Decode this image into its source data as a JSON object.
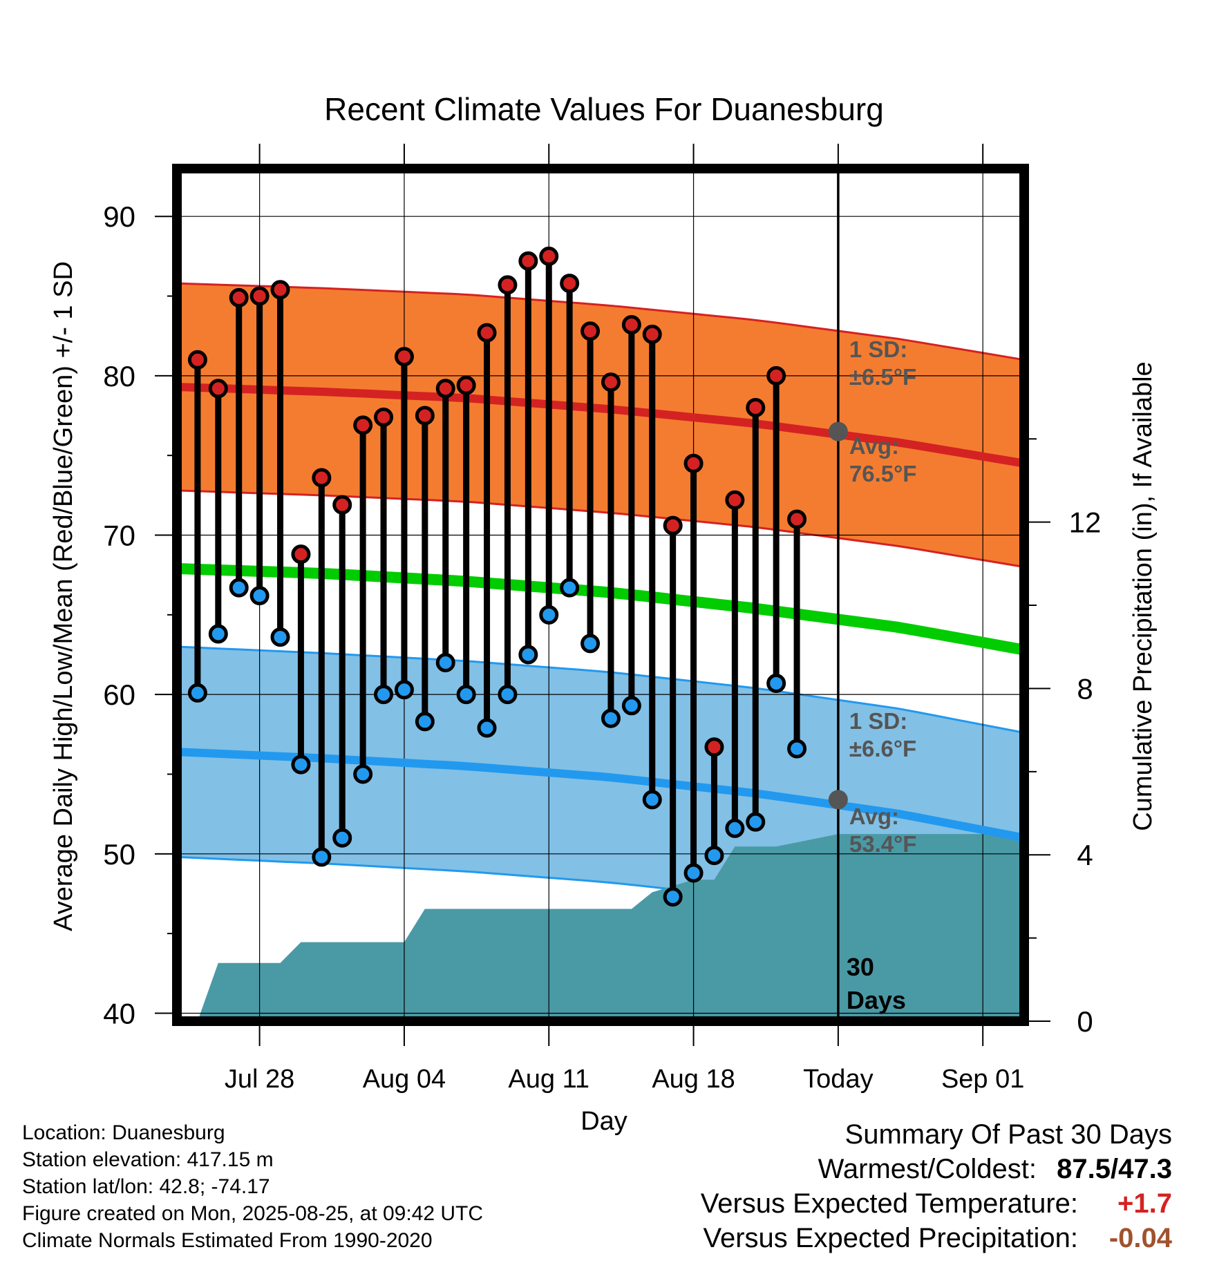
{
  "chart_data": {
    "type": "line",
    "title": "Recent Climate Values For Duanesburg",
    "xlabel": "Day",
    "ylabel": "Average Daily High/Low/Mean (Red/Blue/Green) +/- 1 SD",
    "y2label": "Cumulative Precipitation (in), If Available",
    "ylim": [
      39.5,
      93
    ],
    "y2lim": [
      0,
      20.5
    ],
    "yticks": [
      "40",
      "50",
      "60",
      "70",
      "80",
      "90"
    ],
    "y2ticks": [
      "0",
      "4",
      "8",
      "12"
    ],
    "xlim": [
      "2025-07-24",
      "2025-09-03"
    ],
    "xticks": [
      {
        "date": "2025-07-28",
        "label": "Jul 28"
      },
      {
        "date": "2025-08-04",
        "label": "Aug 04"
      },
      {
        "date": "2025-08-11",
        "label": "Aug 11"
      },
      {
        "date": "2025-08-18",
        "label": "Aug 18"
      },
      {
        "date": "2025-08-25",
        "label": "Today"
      },
      {
        "date": "2025-09-01",
        "label": "Sep 01"
      }
    ],
    "grid": true,
    "today": "2025-08-25",
    "colors": {
      "high": "#d42222",
      "low": "#2299ee",
      "mean": "#00cc00",
      "high_band": "#f47c30",
      "low_band": "#82c0e6",
      "precip": "#4a9aa6"
    },
    "daily": {
      "dates": [
        "2025-07-25",
        "2025-07-26",
        "2025-07-27",
        "2025-07-28",
        "2025-07-29",
        "2025-07-30",
        "2025-07-31",
        "2025-08-01",
        "2025-08-02",
        "2025-08-03",
        "2025-08-04",
        "2025-08-05",
        "2025-08-06",
        "2025-08-07",
        "2025-08-08",
        "2025-08-09",
        "2025-08-10",
        "2025-08-11",
        "2025-08-12",
        "2025-08-13",
        "2025-08-14",
        "2025-08-15",
        "2025-08-16",
        "2025-08-17",
        "2025-08-18",
        "2025-08-19",
        "2025-08-20",
        "2025-08-21",
        "2025-08-22",
        "2025-08-23",
        "2025-08-24"
      ],
      "high": [
        81.0,
        79.2,
        84.9,
        85.0,
        85.4,
        68.8,
        73.6,
        71.9,
        76.9,
        77.4,
        81.2,
        77.5,
        79.2,
        79.4,
        82.7,
        85.7,
        87.2,
        87.5,
        85.8,
        82.8,
        79.6,
        83.2,
        82.6,
        70.6,
        74.5,
        56.7,
        72.2,
        78.0,
        80.0,
        71.0,
        null
      ],
      "low": [
        60.1,
        63.8,
        66.7,
        66.2,
        63.6,
        55.6,
        49.8,
        51.0,
        55.0,
        60.0,
        60.3,
        58.3,
        62.0,
        60.0,
        57.9,
        60.0,
        62.5,
        65.0,
        66.7,
        63.2,
        58.5,
        59.3,
        53.4,
        47.3,
        48.8,
        49.9,
        51.6,
        52.0,
        60.7,
        56.6,
        null
      ]
    },
    "normals": {
      "dates": [
        "2025-07-24",
        "2025-07-31",
        "2025-08-07",
        "2025-08-14",
        "2025-08-21",
        "2025-08-28",
        "2025-09-03"
      ],
      "high_avg": [
        79.3,
        79.0,
        78.6,
        77.9,
        77.0,
        75.8,
        74.5
      ],
      "high_sd": 6.5,
      "low_avg": [
        56.4,
        56.0,
        55.5,
        54.8,
        53.8,
        52.5,
        51.0
      ],
      "low_sd": 6.6,
      "mean_avg": [
        67.9,
        67.6,
        67.1,
        66.4,
        65.4,
        64.2,
        62.8
      ]
    },
    "precip": {
      "dates": [
        "2025-07-25",
        "2025-07-26",
        "2025-07-28",
        "2025-07-29",
        "2025-07-30",
        "2025-08-04",
        "2025-08-05",
        "2025-08-14",
        "2025-08-15",
        "2025-08-16",
        "2025-08-18",
        "2025-08-19",
        "2025-08-20",
        "2025-08-22",
        "2025-08-23",
        "2025-08-25"
      ],
      "values": [
        0.0,
        1.4,
        1.4,
        1.4,
        1.9,
        1.9,
        2.7,
        2.7,
        2.7,
        3.1,
        3.4,
        3.4,
        4.2,
        4.2,
        4.3,
        4.5
      ]
    },
    "annotations": {
      "high_sd_label": "1 SD:",
      "high_sd_value": "±6.5°F",
      "high_avg_label": "Avg:",
      "high_avg_value": "76.5°F",
      "high_avg_today": 76.5,
      "low_sd_label": "1 SD:",
      "low_sd_value": "±6.6°F",
      "low_avg_label": "Avg:",
      "low_avg_value": "53.4°F",
      "low_avg_today": 53.4,
      "days_label_1": "30",
      "days_label_2": "Days"
    }
  },
  "footer": {
    "location": "Location: Duanesburg",
    "elevation": "Station elevation: 417.15 m",
    "latlon": "Station lat/lon: 42.8; -74.17",
    "created": "Figure created on Mon, 2025-08-25, at 09:42 UTC",
    "normals": "Climate Normals Estimated From 1990-2020"
  },
  "summary": {
    "title": "Summary Of Past 30 Days",
    "warm_cold_label": "Warmest/Coldest:",
    "warm_cold_value": "87.5/47.3",
    "temp_label": "Versus Expected Temperature:",
    "temp_value": "+1.7",
    "temp_color": "#d42222",
    "precip_label": "Versus Expected Precipitation:",
    "precip_value": "-0.04",
    "precip_color": "#a0522d"
  }
}
